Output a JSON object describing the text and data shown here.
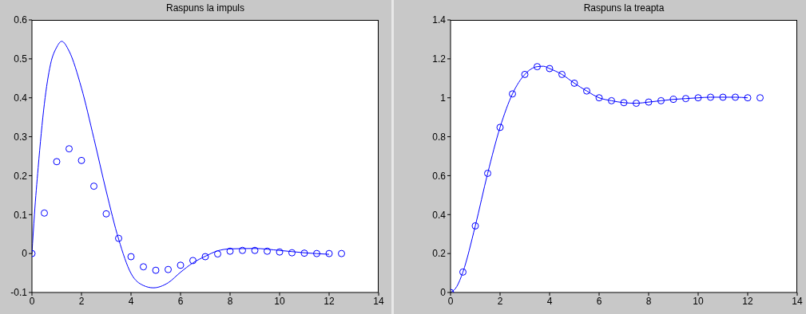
{
  "chart_data": [
    {
      "type": "line",
      "title": "Raspuns la impuls",
      "xlim": [
        0,
        14
      ],
      "xticks": [
        0,
        2,
        4,
        6,
        8,
        10,
        12,
        14
      ],
      "ylim": [
        -0.1,
        0.6
      ],
      "yticks": [
        -0.1,
        0,
        0.1,
        0.2,
        0.3,
        0.4,
        0.5,
        0.6
      ],
      "series": [
        {
          "type": "line",
          "marker": "none",
          "color": "#0000ff",
          "x": [
            0,
            0.1,
            0.25,
            0.5,
            0.75,
            1,
            1.2,
            1.5,
            2,
            2.5,
            3,
            3.5,
            4,
            4.5,
            4.9,
            5.5,
            6,
            6.5,
            7,
            7.5,
            8,
            9,
            10,
            11,
            12
          ],
          "values": [
            0,
            0.1,
            0.22,
            0.384,
            0.486,
            0.53,
            0.545,
            0.52,
            0.425,
            0.296,
            0.16,
            0.037,
            -0.051,
            -0.082,
            -0.088,
            -0.075,
            -0.048,
            -0.024,
            -0.007,
            0.007,
            0.012,
            0.013,
            0.008,
            0.002,
            -0.002
          ]
        },
        {
          "type": "scatter",
          "marker": "circle",
          "color": "#0000ff",
          "x": [
            0,
            0.5,
            1,
            1.5,
            2,
            2.5,
            3,
            3.5,
            4,
            4.5,
            5,
            5.5,
            6,
            6.5,
            7,
            7.5,
            8,
            8.5,
            9,
            9.5,
            10,
            10.5,
            11,
            11.5,
            12,
            12.5
          ],
          "values": [
            0,
            0.104,
            0.236,
            0.269,
            0.239,
            0.173,
            0.102,
            0.039,
            -0.008,
            -0.034,
            -0.043,
            -0.041,
            -0.03,
            -0.018,
            -0.008,
            -0.001,
            0.006,
            0.008,
            0.008,
            0.006,
            0.004,
            0.002,
            0.001,
            0,
            0,
            0
          ]
        }
      ]
    },
    {
      "type": "line",
      "title": "Raspuns la treapta",
      "xlim": [
        0,
        14
      ],
      "xticks": [
        0,
        2,
        4,
        6,
        8,
        10,
        12,
        14
      ],
      "ylim": [
        0,
        1.4
      ],
      "yticks": [
        0,
        0.2,
        0.4,
        0.6,
        0.8,
        1,
        1.2,
        1.4
      ],
      "series": [
        {
          "type": "line",
          "marker": "none",
          "color": "#0000ff",
          "x": [
            0,
            0.25,
            0.5,
            1,
            1.5,
            2,
            2.5,
            3,
            3.5,
            3.75,
            4,
            4.5,
            5,
            5.5,
            6,
            6.5,
            7,
            7.5,
            8,
            8.5,
            9,
            9.5,
            10,
            10.5,
            11,
            11.5,
            12
          ],
          "values": [
            0,
            0.03,
            0.105,
            0.342,
            0.612,
            0.848,
            1.02,
            1.12,
            1.16,
            1.162,
            1.15,
            1.12,
            1.075,
            1.035,
            1,
            0.985,
            0.975,
            0.972,
            0.978,
            0.985,
            0.992,
            0.996,
            1,
            1.003,
            1.003,
            1.003,
            1
          ]
        },
        {
          "type": "scatter",
          "marker": "circle",
          "color": "#0000ff",
          "x": [
            0,
            0.5,
            1,
            1.5,
            2,
            2.5,
            3,
            3.5,
            4,
            4.5,
            5,
            5.5,
            6,
            6.5,
            7,
            7.5,
            8,
            8.5,
            9,
            9.5,
            10,
            10.5,
            11,
            11.5,
            12,
            12.5
          ],
          "values": [
            0,
            0.105,
            0.342,
            0.612,
            0.848,
            1.02,
            1.12,
            1.16,
            1.15,
            1.12,
            1.075,
            1.035,
            1,
            0.985,
            0.975,
            0.972,
            0.978,
            0.985,
            0.992,
            0.996,
            1,
            1.003,
            1.003,
            1.003,
            1,
            1
          ]
        }
      ]
    }
  ]
}
